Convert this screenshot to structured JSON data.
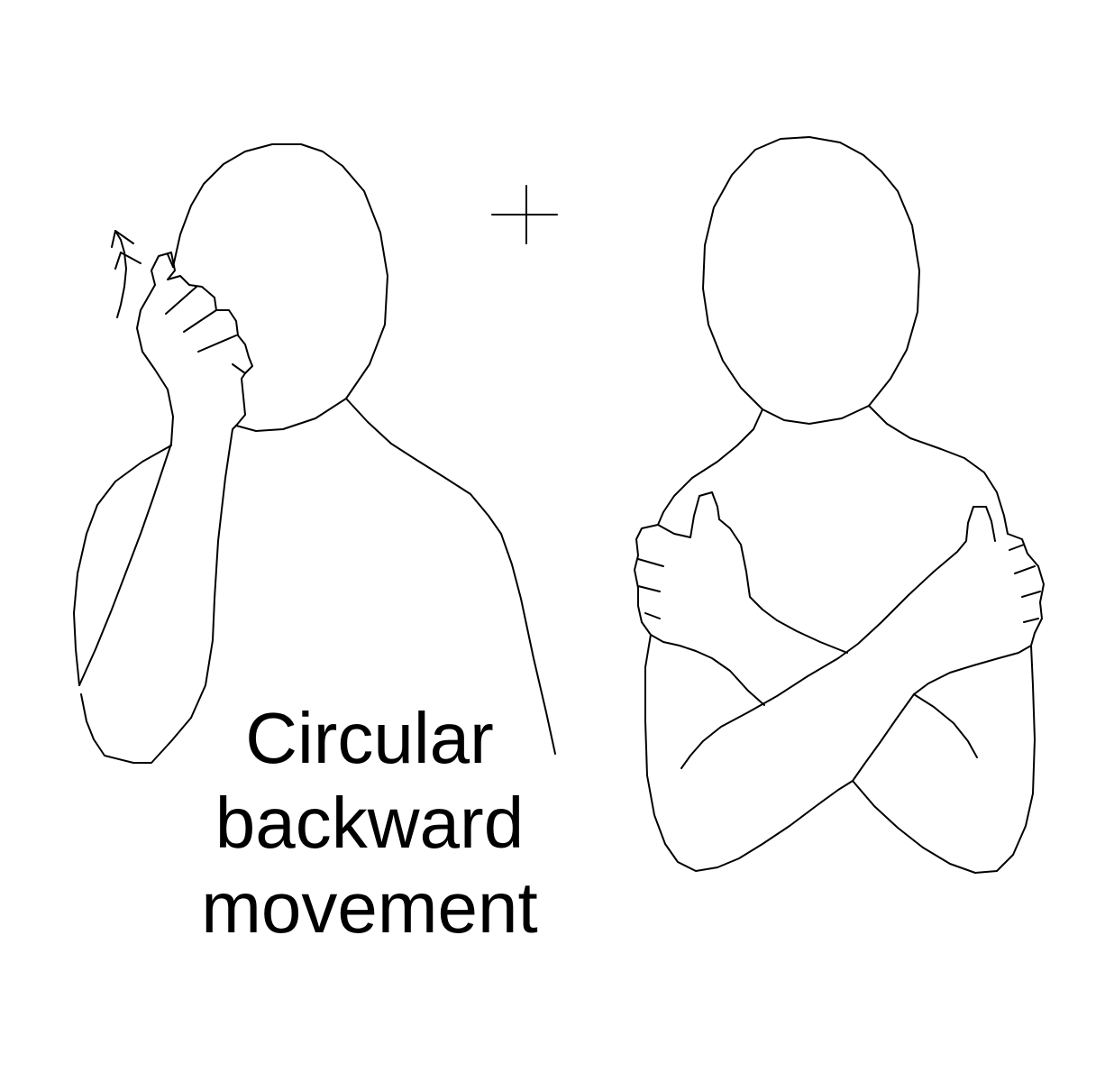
{
  "caption": {
    "line1": "Circular",
    "line2": "backward",
    "line3": "movement"
  },
  "connector_symbol": "+",
  "figures": [
    {
      "id": "left",
      "icon": "person-hand-to-head-icon"
    },
    {
      "id": "right",
      "icon": "person-crossed-arms-icon"
    }
  ],
  "movement_marker": {
    "icon": "upward-arrow-icon"
  },
  "colors": {
    "line": "#000000",
    "background": "#ffffff"
  }
}
